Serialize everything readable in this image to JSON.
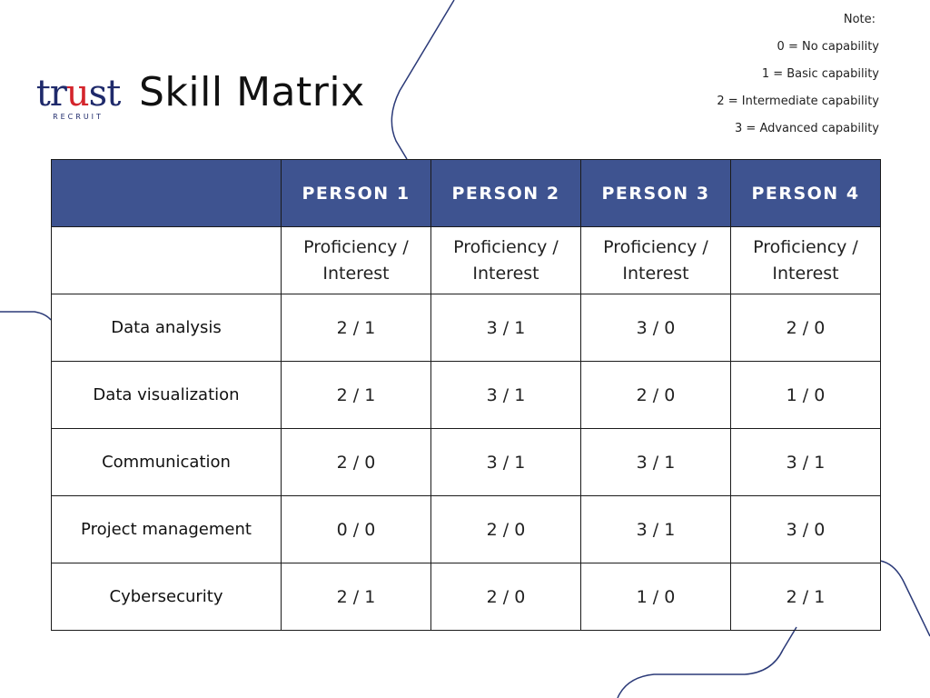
{
  "brand": {
    "logo_main_a": "tr",
    "logo_main_accent": "u",
    "logo_main_b": "st",
    "logo_sub": "RECRUIT"
  },
  "title": "Skill Matrix",
  "note": {
    "heading": "Note:",
    "lines": [
      "0 = No capability",
      "1 = Basic capability",
      "2 = Intermediate capability",
      "3 = Advanced capability"
    ]
  },
  "colors": {
    "header_bg": "#3e5390",
    "header_text": "#ffffff",
    "border": "#1b1b1b",
    "deco_line": "#2b3a78",
    "accent": "#d4252c"
  },
  "table": {
    "corner": "",
    "headers": [
      "PERSON 1",
      "PERSON 2",
      "PERSON 3",
      "PERSON 4"
    ],
    "subheaders": [
      "Proficiency / Interest",
      "Proficiency / Interest",
      "Proficiency / Interest",
      "Proficiency / Interest"
    ],
    "subcorner": "",
    "rows": [
      {
        "skill": "Data analysis",
        "values": [
          "2 / 1",
          "3 / 1",
          "3 / 0",
          "2 / 0"
        ]
      },
      {
        "skill": "Data visualization",
        "values": [
          "2 / 1",
          "3 / 1",
          "2 / 0",
          "1 / 0"
        ]
      },
      {
        "skill": "Communication",
        "values": [
          "2 / 0",
          "3 / 1",
          "3 / 1",
          "3 / 1"
        ]
      },
      {
        "skill": "Project management",
        "values": [
          "0 / 0",
          "2 / 0",
          "3 / 1",
          "3 / 0"
        ]
      },
      {
        "skill": "Cybersecurity",
        "values": [
          "2 / 1",
          "2 / 0",
          "1 / 0",
          "2 / 1"
        ]
      }
    ]
  }
}
